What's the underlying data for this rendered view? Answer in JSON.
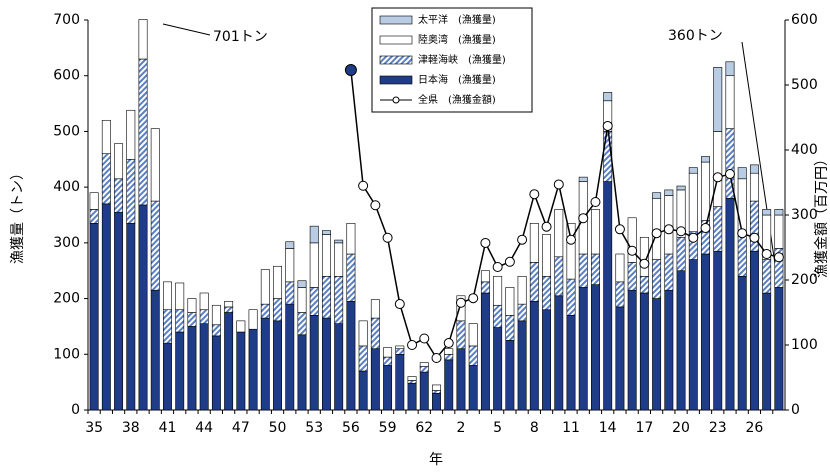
{
  "chart_data": {
    "type": "bar",
    "stacked": true,
    "ylabel": "漁獲量（トン）",
    "y2label": "漁獲金額（百万円）",
    "xlabel": "年",
    "categories": [
      "35",
      null,
      null,
      "38",
      null,
      null,
      "41",
      null,
      null,
      "44",
      null,
      null,
      "47",
      null,
      null,
      "50",
      null,
      null,
      "53",
      null,
      null,
      "56",
      null,
      null,
      "59",
      null,
      null,
      "62",
      null,
      null,
      "2",
      null,
      null,
      "5",
      null,
      null,
      "8",
      null,
      null,
      "11",
      null,
      null,
      "14",
      null,
      null,
      "17",
      null,
      null,
      "20",
      null,
      null,
      "23",
      null,
      null,
      "26",
      null,
      null
    ],
    "series": [
      {
        "name": "太平洋　(漁獲量)",
        "color": "#b8cce4",
        "values": [
          0,
          0,
          0,
          0,
          0,
          0,
          0,
          0,
          0,
          0,
          0,
          0,
          0,
          0,
          0,
          0,
          12,
          12,
          30,
          7,
          5,
          0,
          0,
          0,
          0,
          0,
          0,
          0,
          0,
          0,
          0,
          0,
          0,
          0,
          0,
          0,
          0,
          0,
          0,
          0,
          8,
          0,
          15,
          0,
          0,
          0,
          10,
          10,
          7,
          10,
          10,
          115,
          25,
          20,
          15,
          10,
          10
        ]
      },
      {
        "name": "陸奥湾　(漁獲量)",
        "color": "#ffffff",
        "values": [
          30,
          60,
          63,
          88,
          71,
          130,
          50,
          48,
          25,
          30,
          35,
          10,
          20,
          35,
          62,
          58,
          60,
          45,
          80,
          75,
          60,
          55,
          45,
          33,
          17,
          5,
          7,
          7,
          10,
          10,
          45,
          40,
          20,
          52,
          50,
          50,
          70,
          75,
          85,
          100,
          130,
          80,
          55,
          50,
          80,
          70,
          110,
          105,
          85,
          105,
          105,
          135,
          95,
          95,
          50,
          80,
          60
        ]
      },
      {
        "name": "津軽海峡　(漁獲量)",
        "color": "#5b7fc4",
        "hatch": true,
        "values": [
          25,
          90,
          60,
          115,
          262,
          160,
          60,
          40,
          25,
          25,
          20,
          10,
          0,
          0,
          25,
          40,
          40,
          40,
          50,
          75,
          85,
          85,
          45,
          55,
          15,
          10,
          5,
          10,
          5,
          10,
          50,
          35,
          20,
          40,
          45,
          30,
          70,
          60,
          70,
          65,
          60,
          55,
          90,
          45,
          50,
          30,
          70,
          65,
          60,
          50,
          60,
          80,
          125,
          80,
          90,
          60,
          70
        ]
      },
      {
        "name": "日本海　(漁獲量)",
        "color": "#1f3c88",
        "values": [
          335,
          370,
          355,
          335,
          368,
          215,
          120,
          140,
          150,
          155,
          133,
          175,
          140,
          145,
          165,
          160,
          190,
          135,
          170,
          165,
          155,
          195,
          70,
          110,
          80,
          100,
          48,
          68,
          30,
          90,
          110,
          80,
          210,
          148,
          125,
          160,
          195,
          180,
          205,
          170,
          220,
          225,
          410,
          185,
          215,
          210,
          200,
          215,
          250,
          270,
          280,
          285,
          380,
          240,
          285,
          210,
          220
        ]
      },
      {
        "name": "全県　(漁獲金額)",
        "type": "line",
        "axis": "y2",
        "color": "#000000",
        "values": [
          null,
          null,
          null,
          null,
          null,
          null,
          null,
          null,
          null,
          null,
          null,
          null,
          null,
          null,
          null,
          null,
          null,
          null,
          null,
          null,
          null,
          523,
          345,
          315,
          265,
          163,
          100,
          110,
          80,
          103,
          165,
          172,
          257,
          220,
          228,
          262,
          332,
          282,
          347,
          262,
          295,
          320,
          437,
          278,
          245,
          225,
          272,
          278,
          275,
          265,
          280,
          358,
          363,
          272,
          265,
          240,
          235
        ]
      }
    ],
    "ylim": [
      0,
      700
    ],
    "yticks": [
      0,
      100,
      200,
      300,
      400,
      500,
      600,
      700
    ],
    "y2lim": [
      0,
      600
    ],
    "y2ticks": [
      0,
      100,
      200,
      300,
      400,
      500,
      600
    ],
    "annotations": [
      "701トン",
      "360トン"
    ]
  }
}
